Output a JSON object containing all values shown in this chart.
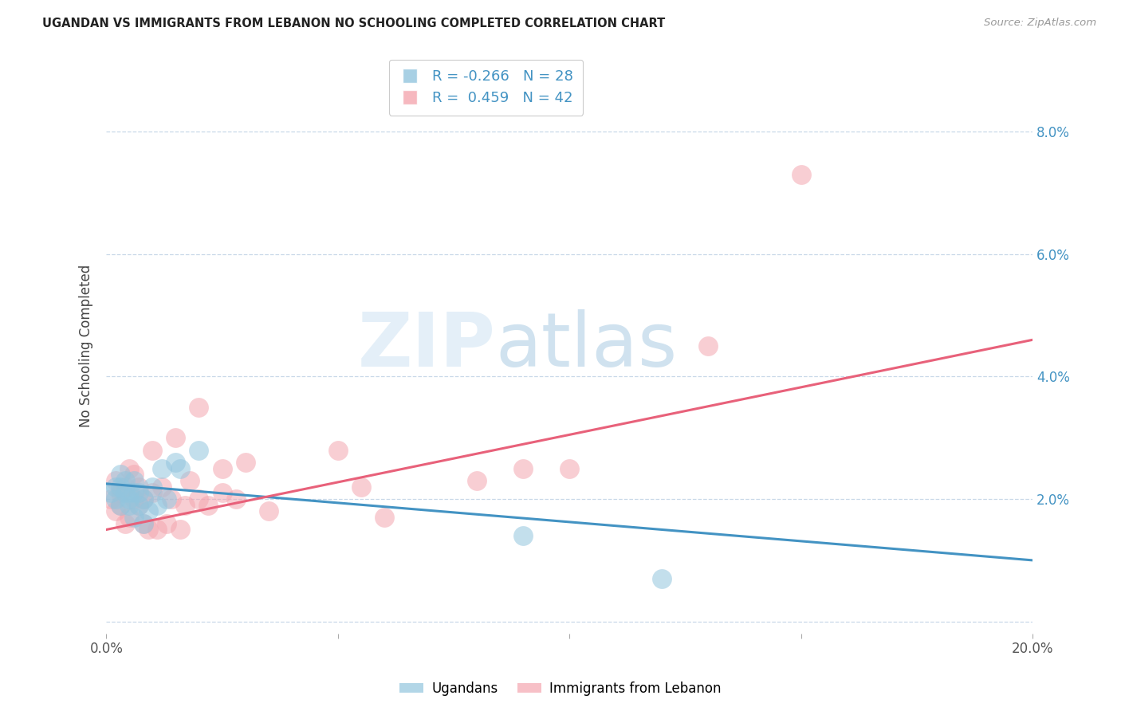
{
  "title": "UGANDAN VS IMMIGRANTS FROM LEBANON NO SCHOOLING COMPLETED CORRELATION CHART",
  "source": "Source: ZipAtlas.com",
  "ylabel": "No Schooling Completed",
  "xmin": 0.0,
  "xmax": 0.2,
  "ymin": -0.002,
  "ymax": 0.092,
  "yticks": [
    0.0,
    0.02,
    0.04,
    0.06,
    0.08
  ],
  "ytick_labels": [
    "",
    "2.0%",
    "4.0%",
    "6.0%",
    "8.0%"
  ],
  "xticks": [
    0.0,
    0.05,
    0.1,
    0.15,
    0.2
  ],
  "xtick_labels": [
    "0.0%",
    "",
    "",
    "",
    "20.0%"
  ],
  "blue_R": -0.266,
  "blue_N": 28,
  "pink_R": 0.459,
  "pink_N": 42,
  "blue_color": "#92c5de",
  "pink_color": "#f4a6b0",
  "blue_line_color": "#4393c3",
  "pink_line_color": "#e8617a",
  "watermark_zip": "ZIP",
  "watermark_atlas": "atlas",
  "legend_label_blue": "Ugandans",
  "legend_label_pink": "Immigrants from Lebanon",
  "blue_scatter_x": [
    0.001,
    0.002,
    0.002,
    0.003,
    0.003,
    0.003,
    0.004,
    0.004,
    0.005,
    0.005,
    0.005,
    0.006,
    0.006,
    0.006,
    0.007,
    0.007,
    0.008,
    0.008,
    0.009,
    0.01,
    0.011,
    0.012,
    0.013,
    0.015,
    0.016,
    0.02,
    0.09,
    0.12
  ],
  "blue_scatter_y": [
    0.021,
    0.022,
    0.02,
    0.024,
    0.022,
    0.019,
    0.021,
    0.023,
    0.019,
    0.021,
    0.02,
    0.023,
    0.017,
    0.021,
    0.021,
    0.019,
    0.02,
    0.016,
    0.018,
    0.022,
    0.019,
    0.025,
    0.02,
    0.026,
    0.025,
    0.028,
    0.014,
    0.007
  ],
  "pink_scatter_x": [
    0.001,
    0.002,
    0.002,
    0.003,
    0.003,
    0.004,
    0.004,
    0.005,
    0.005,
    0.006,
    0.006,
    0.007,
    0.007,
    0.008,
    0.008,
    0.009,
    0.01,
    0.01,
    0.011,
    0.012,
    0.013,
    0.014,
    0.015,
    0.016,
    0.017,
    0.018,
    0.02,
    0.025,
    0.025,
    0.028,
    0.03,
    0.035,
    0.05,
    0.055,
    0.06,
    0.08,
    0.09,
    0.1,
    0.13,
    0.15,
    0.02,
    0.022
  ],
  "pink_scatter_y": [
    0.02,
    0.023,
    0.018,
    0.021,
    0.019,
    0.022,
    0.016,
    0.025,
    0.017,
    0.02,
    0.024,
    0.019,
    0.022,
    0.016,
    0.02,
    0.015,
    0.021,
    0.028,
    0.015,
    0.022,
    0.016,
    0.02,
    0.03,
    0.015,
    0.019,
    0.023,
    0.02,
    0.021,
    0.025,
    0.02,
    0.026,
    0.018,
    0.028,
    0.022,
    0.017,
    0.023,
    0.025,
    0.025,
    0.045,
    0.073,
    0.035,
    0.019
  ],
  "blue_trend_x": [
    0.0,
    0.2
  ],
  "blue_trend_y": [
    0.0225,
    0.01
  ],
  "pink_trend_x": [
    0.0,
    0.2
  ],
  "pink_trend_y": [
    0.015,
    0.046
  ]
}
